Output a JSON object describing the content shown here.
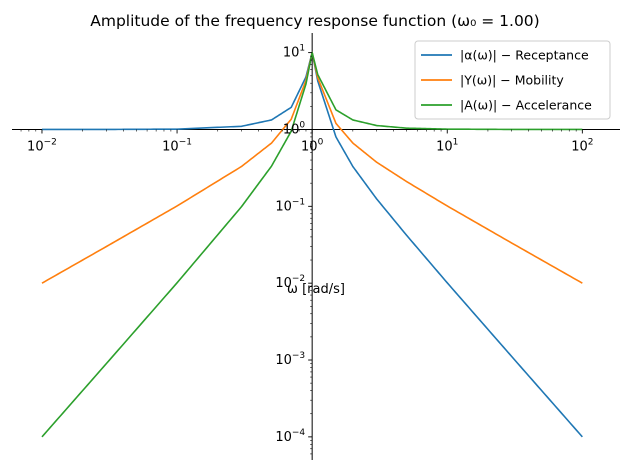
{
  "chart_data": {
    "type": "line",
    "title": "Amplitude of the frequency response function (ω₀ = 1.00)",
    "xlabel": "ω [rad/s]",
    "ylabel": "",
    "xscale": "log",
    "yscale": "log",
    "xlim": [
      0.006,
      190
    ],
    "ylim": [
      5e-05,
      18
    ],
    "grid": false,
    "legend_position": "top-right",
    "omega0": 1.0,
    "x_ticks": [
      {
        "value": 0.01,
        "base": "10",
        "exp": "−2"
      },
      {
        "value": 0.1,
        "base": "10",
        "exp": "−1"
      },
      {
        "value": 1,
        "base": "10",
        "exp": "0"
      },
      {
        "value": 10,
        "base": "10",
        "exp": "1"
      },
      {
        "value": 100,
        "base": "10",
        "exp": "2"
      }
    ],
    "y_ticks": [
      {
        "value": 0.0001,
        "base": "10",
        "exp": "−4"
      },
      {
        "value": 0.001,
        "base": "10",
        "exp": "−3"
      },
      {
        "value": 0.01,
        "base": "10",
        "exp": "−2"
      },
      {
        "value": 0.1,
        "base": "10",
        "exp": "−1"
      },
      {
        "value": 1,
        "base": "10",
        "exp": "0"
      },
      {
        "value": 10,
        "base": "10",
        "exp": "1"
      }
    ],
    "series": [
      {
        "name": "|α(ω)| − Receptance",
        "color": "#1f77b4",
        "x": [
          0.01,
          0.03,
          0.1,
          0.3,
          0.5,
          0.7,
          0.9,
          1.0,
          1.1,
          1.5,
          2,
          3,
          5,
          10,
          30,
          100
        ],
        "y": [
          1.0,
          1.001,
          1.01,
          1.1,
          1.33,
          1.94,
          4.83,
          10,
          4.28,
          0.8,
          0.33,
          0.125,
          0.042,
          0.0101,
          0.00111,
          0.0001
        ]
      },
      {
        "name": "|Y(ω)| − Mobility",
        "color": "#ff7f0e",
        "x": [
          0.01,
          0.03,
          0.1,
          0.3,
          0.5,
          0.7,
          0.9,
          1.0,
          1.1,
          1.5,
          2,
          3,
          5,
          10,
          30,
          100
        ],
        "y": [
          0.01,
          0.03,
          0.101,
          0.33,
          0.665,
          1.36,
          4.35,
          10,
          4.71,
          1.2,
          0.666,
          0.375,
          0.21,
          0.101,
          0.0333,
          0.01
        ]
      },
      {
        "name": "|A(ω)| − Accelerance",
        "color": "#2ca02c",
        "x": [
          0.01,
          0.03,
          0.1,
          0.3,
          0.5,
          0.7,
          0.9,
          1.0,
          1.1,
          1.5,
          2,
          3,
          5,
          10,
          30,
          100
        ],
        "y": [
          0.0001,
          0.0009,
          0.0101,
          0.099,
          0.333,
          0.95,
          3.91,
          10,
          5.18,
          1.8,
          1.33,
          1.125,
          1.04,
          1.01,
          1.001,
          1.0
        ]
      }
    ]
  }
}
